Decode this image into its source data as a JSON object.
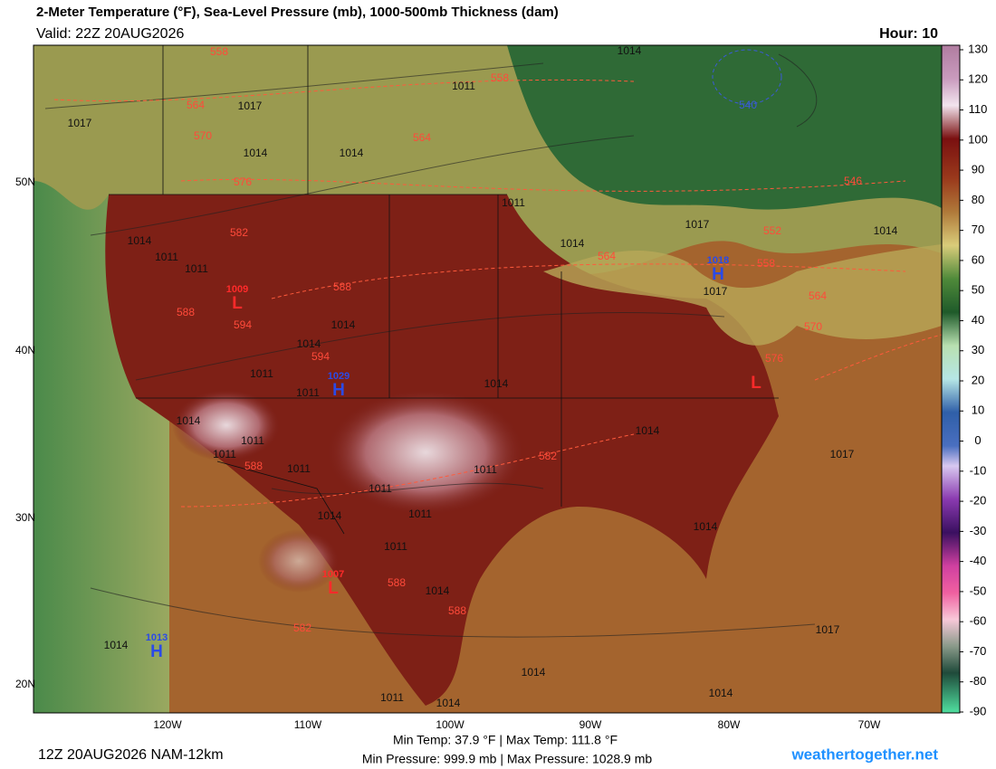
{
  "header": {
    "title": "2-Meter Temperature (°F), Sea-Level Pressure (mb), 1000-500mb Thickness (dam)",
    "valid": "Valid: 22Z 20AUG2026",
    "hour": "Hour: 10"
  },
  "map": {
    "lat_labels": [
      "50N",
      "40N",
      "30N",
      "20N"
    ],
    "lon_labels": [
      "120W",
      "110W",
      "100W",
      "90W",
      "80W",
      "70W"
    ],
    "isobar_labels": [
      1014,
      1011,
      1017,
      1017,
      1014,
      1014,
      1011,
      1014,
      1011,
      1011,
      1014,
      1017,
      1014,
      1017,
      1014,
      1014,
      1011,
      1011,
      1014,
      1014,
      1011,
      1011,
      1014,
      1011,
      1011,
      1011,
      1017,
      1011,
      1014,
      1014,
      1011,
      1014,
      1017,
      1014,
      1014,
      1014,
      1011,
      1014
    ],
    "thickness_labels": [
      558,
      558,
      564,
      570,
      564,
      576,
      582,
      540,
      546,
      552,
      558,
      564,
      564,
      570,
      576,
      588,
      594,
      588,
      594,
      582,
      588,
      588,
      588,
      582
    ],
    "centers": [
      {
        "letter": "L",
        "value": 1009
      },
      {
        "letter": "H",
        "value": 1029
      },
      {
        "letter": "H",
        "value": 1018
      },
      {
        "letter": "L"
      },
      {
        "letter": "L",
        "value": 1007
      },
      {
        "letter": "H",
        "value": 1013
      }
    ]
  },
  "colorbar": {
    "ticks": [
      130,
      120,
      110,
      100,
      90,
      80,
      70,
      60,
      50,
      40,
      30,
      20,
      10,
      0,
      -10,
      -20,
      -30,
      -40,
      -50,
      -60,
      -70,
      -80,
      -90
    ]
  },
  "footer": {
    "run": "12Z 20AUG2026 NAM-12km",
    "temp": "Min Temp:  37.9 °F | Max Temp: 111.8 °F",
    "pressure": "Min Pressure: 999.9 mb | Max Pressure: 1028.9 mb",
    "site": "weathertogether.net"
  }
}
